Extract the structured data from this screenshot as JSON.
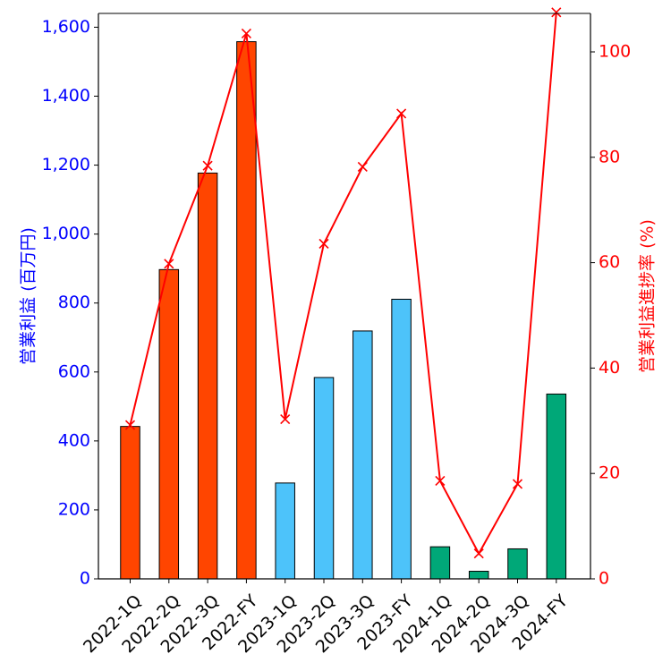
{
  "chart_data": {
    "type": "bar+line",
    "title": "",
    "xlabel": "",
    "categories": [
      "2022-1Q",
      "2022-2Q",
      "2022-3Q",
      "2022-FY",
      "2023-1Q",
      "2023-2Q",
      "2023-3Q",
      "2023-FY",
      "2024-1Q",
      "2024-2Q",
      "2024-3Q",
      "2024-FY"
    ],
    "bar_series": {
      "name": "営業利益 (百万円)",
      "values": [
        442,
        897,
        1177,
        1558,
        278,
        584,
        719,
        811,
        93,
        22,
        87,
        536
      ],
      "colors": [
        "#ff4500",
        "#ff4500",
        "#ff4500",
        "#ff4500",
        "#4dc3fa",
        "#4dc3fa",
        "#4dc3fa",
        "#4dc3fa",
        "#00a878",
        "#00a878",
        "#00a878",
        "#00a878"
      ]
    },
    "line_series": {
      "name": "営業利益進捗率 (%)",
      "values": [
        29.2,
        59.8,
        78.4,
        103.5,
        30.3,
        63.6,
        78.2,
        88.3,
        18.6,
        4.8,
        18.0,
        107.5
      ],
      "color": "#ff0000",
      "marker": "x"
    },
    "ylabel_left": "営業利益 (百万円)",
    "ylabel_right": "営業利益進捗率 (%)",
    "ylim_left": [
      0,
      1640
    ],
    "ylim_right": [
      0,
      107.3
    ],
    "yticks_left": [
      "0",
      "200",
      "400",
      "600",
      "800",
      "1,000",
      "1,200",
      "1,400",
      "1,600"
    ],
    "yticks_left_values": [
      0,
      200,
      400,
      600,
      800,
      1000,
      1200,
      1400,
      1600
    ],
    "yticks_right": [
      "0",
      "20",
      "40",
      "60",
      "80",
      "100"
    ],
    "yticks_right_values": [
      0,
      20,
      40,
      60,
      80,
      100
    ],
    "left_axis_color": "#0000ff",
    "right_axis_color": "#ff0000",
    "grid": false
  }
}
